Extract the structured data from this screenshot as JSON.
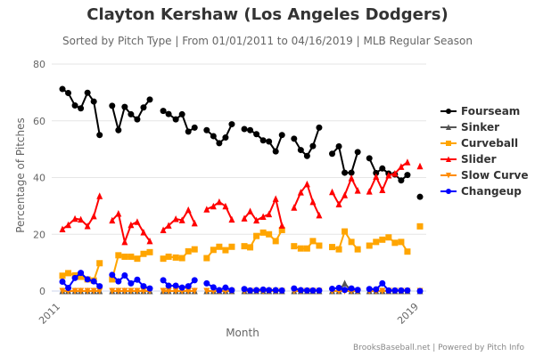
{
  "chart_data": {
    "type": "line",
    "title": "Clayton Kershaw (Los Angeles Dodgers)",
    "subtitle": "Sorted by Pitch Type | From 01/01/2011 to 04/16/2019 | MLB Regular Season",
    "xlabel": "Month",
    "ylabel": "Percentage of Pitches",
    "ylim": [
      0,
      80
    ],
    "yticks": [
      "0",
      "20",
      "40",
      "60",
      "80"
    ],
    "xlim": [
      2011,
      2019
    ],
    "xticks": [
      "2011",
      "2019"
    ],
    "grid": true,
    "legend_position": "right",
    "credits": "BrooksBaseball.net | Powered by Pitch Info",
    "series": [
      {
        "name": "Fourseam",
        "color": "#000000",
        "marker": "circle"
      },
      {
        "name": "Sinker",
        "color": "#555555",
        "marker": "triangle"
      },
      {
        "name": "Curveball",
        "color": "#FFA500",
        "marker": "square"
      },
      {
        "name": "Slider",
        "color": "#FF0000",
        "marker": "triangle"
      },
      {
        "name": "Slow Curve",
        "color": "#FF8C00",
        "marker": "triangle-down"
      },
      {
        "name": "Changeup",
        "color": "#0000FF",
        "marker": "circle"
      }
    ],
    "seasons": [
      {
        "x": [
          2011.04,
          2011.17,
          2011.32,
          2011.45,
          2011.6,
          2011.74,
          2011.87
        ],
        "Fourseam": [
          71.2,
          69.8,
          65.4,
          64.4,
          69.9,
          66.8,
          55.0
        ],
        "Sinker": [
          0,
          0,
          0,
          0,
          0,
          0,
          0
        ],
        "Curveball": [
          5.4,
          6.3,
          5.5,
          5.0,
          4.1,
          3.7,
          9.8
        ],
        "Slider": [
          21.8,
          23.3,
          25.5,
          25.2,
          22.9,
          26.4,
          33.5
        ],
        "Slow Curve": [
          0,
          0,
          0,
          0,
          0,
          0,
          0
        ],
        "Changeup": [
          3.3,
          1.1,
          4.6,
          6.4,
          4.1,
          3.4,
          1.7
        ]
      },
      {
        "x": [
          2012.15,
          2012.29,
          2012.43,
          2012.57,
          2012.71,
          2012.85,
          2012.99
        ],
        "Fourseam": [
          65.3,
          56.7,
          64.9,
          62.3,
          60.5,
          64.7,
          67.5
        ],
        "Sinker": [
          0,
          0,
          0,
          0,
          0,
          0,
          0
        ],
        "Curveball": [
          4.1,
          12.6,
          12.1,
          12.1,
          11.4,
          13.1,
          13.7
        ],
        "Slider": [
          24.9,
          27.3,
          17.3,
          23.3,
          24.4,
          20.7,
          17.6
        ],
        "Slow Curve": [
          0,
          0,
          0,
          0,
          0,
          0,
          0
        ],
        "Changeup": [
          5.7,
          3.4,
          5.5,
          2.7,
          4.0,
          1.7,
          0.9
        ]
      },
      {
        "x": [
          2013.29,
          2013.41,
          2013.57,
          2013.71,
          2013.85,
          2013.99
        ],
        "Fourseam": [
          63.5,
          62.4,
          60.5,
          62.3,
          56.2,
          57.6
        ],
        "Sinker": [
          0,
          0,
          0,
          0,
          0,
          0
        ],
        "Curveball": [
          11.4,
          12.1,
          11.8,
          11.6,
          14.0,
          14.7
        ],
        "Slider": [
          21.5,
          23.1,
          25.4,
          25.0,
          28.6,
          23.9
        ],
        "Slow Curve": [
          0,
          0,
          0,
          0,
          0,
          0
        ],
        "Changeup": [
          3.8,
          1.9,
          1.9,
          1.2,
          1.7,
          3.8
        ]
      },
      {
        "x": [
          2014.26,
          2014.41,
          2014.54,
          2014.68,
          2014.82
        ],
        "Fourseam": [
          56.7,
          54.6,
          52.1,
          54.1,
          58.8
        ],
        "Sinker": [
          0,
          0,
          0,
          0,
          0
        ],
        "Curveball": [
          11.6,
          14.5,
          15.6,
          14.4,
          15.6
        ],
        "Slider": [
          28.8,
          29.9,
          31.4,
          29.9,
          25.2
        ],
        "Slow Curve": [
          0,
          0,
          0,
          0,
          0
        ],
        "Changeup": [
          2.7,
          1.3,
          0.3,
          1.2,
          0.3
        ]
      },
      {
        "x": [
          2015.1,
          2015.23,
          2015.37,
          2015.52,
          2015.65,
          2015.8,
          2015.94
        ],
        "Fourseam": [
          57.1,
          56.7,
          55.3,
          53.1,
          52.7,
          49.2,
          55.0
        ],
        "Sinker": [
          0,
          0,
          0,
          0,
          0,
          0,
          0
        ],
        "Curveball": [
          15.8,
          15.4,
          19.4,
          20.6,
          20.0,
          17.6,
          21.5
        ],
        "Slider": [
          25.6,
          28.1,
          24.9,
          26.2,
          27.1,
          32.5,
          23.1
        ],
        "Slow Curve": [
          0,
          0,
          0,
          0,
          0,
          0,
          0
        ],
        "Changeup": [
          0.7,
          0.2,
          0.3,
          0.5,
          0.3,
          0.3,
          0.2
        ]
      },
      {
        "x": [
          2016.21,
          2016.36,
          2016.5,
          2016.63,
          2016.77
        ],
        "Fourseam": [
          53.7,
          49.7,
          47.6,
          51.1,
          57.6
        ],
        "Sinker": [
          0,
          0,
          0,
          0,
          0
        ],
        "Curveball": [
          15.8,
          15.0,
          15.0,
          17.6,
          16.0
        ],
        "Slider": [
          29.4,
          34.8,
          37.7,
          31.4,
          26.7
        ],
        "Slow Curve": [
          0,
          0,
          0,
          0,
          0
        ],
        "Changeup": [
          0.9,
          0.3,
          0.2,
          0.2,
          0.2
        ]
      },
      {
        "x": [
          2017.06,
          2017.21,
          2017.34,
          2017.49,
          2017.63
        ],
        "Fourseam": [
          48.4,
          51.0,
          41.7,
          41.7,
          49.0
        ],
        "Sinker": [
          0,
          0,
          2.7,
          0,
          0
        ],
        "Curveball": [
          15.5,
          14.7,
          21.0,
          17.3,
          14.7
        ],
        "Slider": [
          34.9,
          30.6,
          33.8,
          39.8,
          35.4
        ],
        "Slow Curve": [
          0,
          0,
          0,
          0,
          0
        ],
        "Changeup": [
          0.8,
          1.1,
          0.4,
          0.9,
          0.4
        ]
      },
      {
        "x": [
          2017.89,
          2018.04,
          2018.18,
          2018.32,
          2018.46,
          2018.6,
          2018.74
        ],
        "Fourseam": [
          46.8,
          41.6,
          43.2,
          41.4,
          41.1,
          39.0,
          40.9
        ],
        "Sinker": [
          0,
          0,
          0,
          0,
          0,
          0,
          0
        ],
        "Curveball": [
          16.0,
          17.3,
          18.1,
          18.9,
          17.0,
          17.3,
          13.9
        ],
        "Slider": [
          35.1,
          40.3,
          35.6,
          40.8,
          41.4,
          43.8,
          45.4
        ],
        "Slow Curve": [
          0,
          0,
          0,
          0,
          0,
          0,
          0
        ],
        "Changeup": [
          0.7,
          0.6,
          2.7,
          0.2,
          0.2,
          0.2,
          0.2
        ]
      },
      {
        "x": [
          2019.02
        ],
        "Fourseam": [
          33.2
        ],
        "Sinker": [
          0
        ],
        "Curveball": [
          22.8
        ],
        "Slider": [
          44.0
        ],
        "Slow Curve": [
          0
        ],
        "Changeup": [
          0
        ]
      }
    ]
  }
}
